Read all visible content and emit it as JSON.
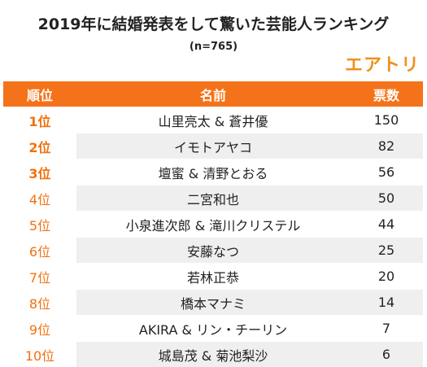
{
  "chart_data": {
    "type": "table",
    "title": "2019年に結婚発表をして驚いた芸能人ランキング",
    "subtitle": "(n=765)",
    "logo": "エアトリ",
    "columns": [
      "順位",
      "名前",
      "票数"
    ],
    "rows": [
      {
        "rank": "1位",
        "name": "山里亮太 & 蒼井優",
        "votes": 150
      },
      {
        "rank": "2位",
        "name": "イモトアヤコ",
        "votes": 82
      },
      {
        "rank": "3位",
        "name": "壇蜜 & 清野とおる",
        "votes": 56
      },
      {
        "rank": "4位",
        "name": "二宮和也",
        "votes": 50
      },
      {
        "rank": "5位",
        "name": "小泉進次郎 & 滝川クリステル",
        "votes": 44
      },
      {
        "rank": "6位",
        "name": "安藤なつ",
        "votes": 25
      },
      {
        "rank": "7位",
        "name": "若林正恭",
        "votes": 20
      },
      {
        "rank": "8位",
        "name": "橋本マナミ",
        "votes": 14
      },
      {
        "rank": "9位",
        "name": "AKIRA & リン・チーリン",
        "votes": 7
      },
      {
        "rank": "10位",
        "name": "城島茂 & 菊池梨沙",
        "votes": 6
      }
    ],
    "colors": {
      "accent": "#f4731a",
      "rank_text": "#f2710f",
      "shade": "#efefef",
      "logo": "#f0901e"
    }
  }
}
